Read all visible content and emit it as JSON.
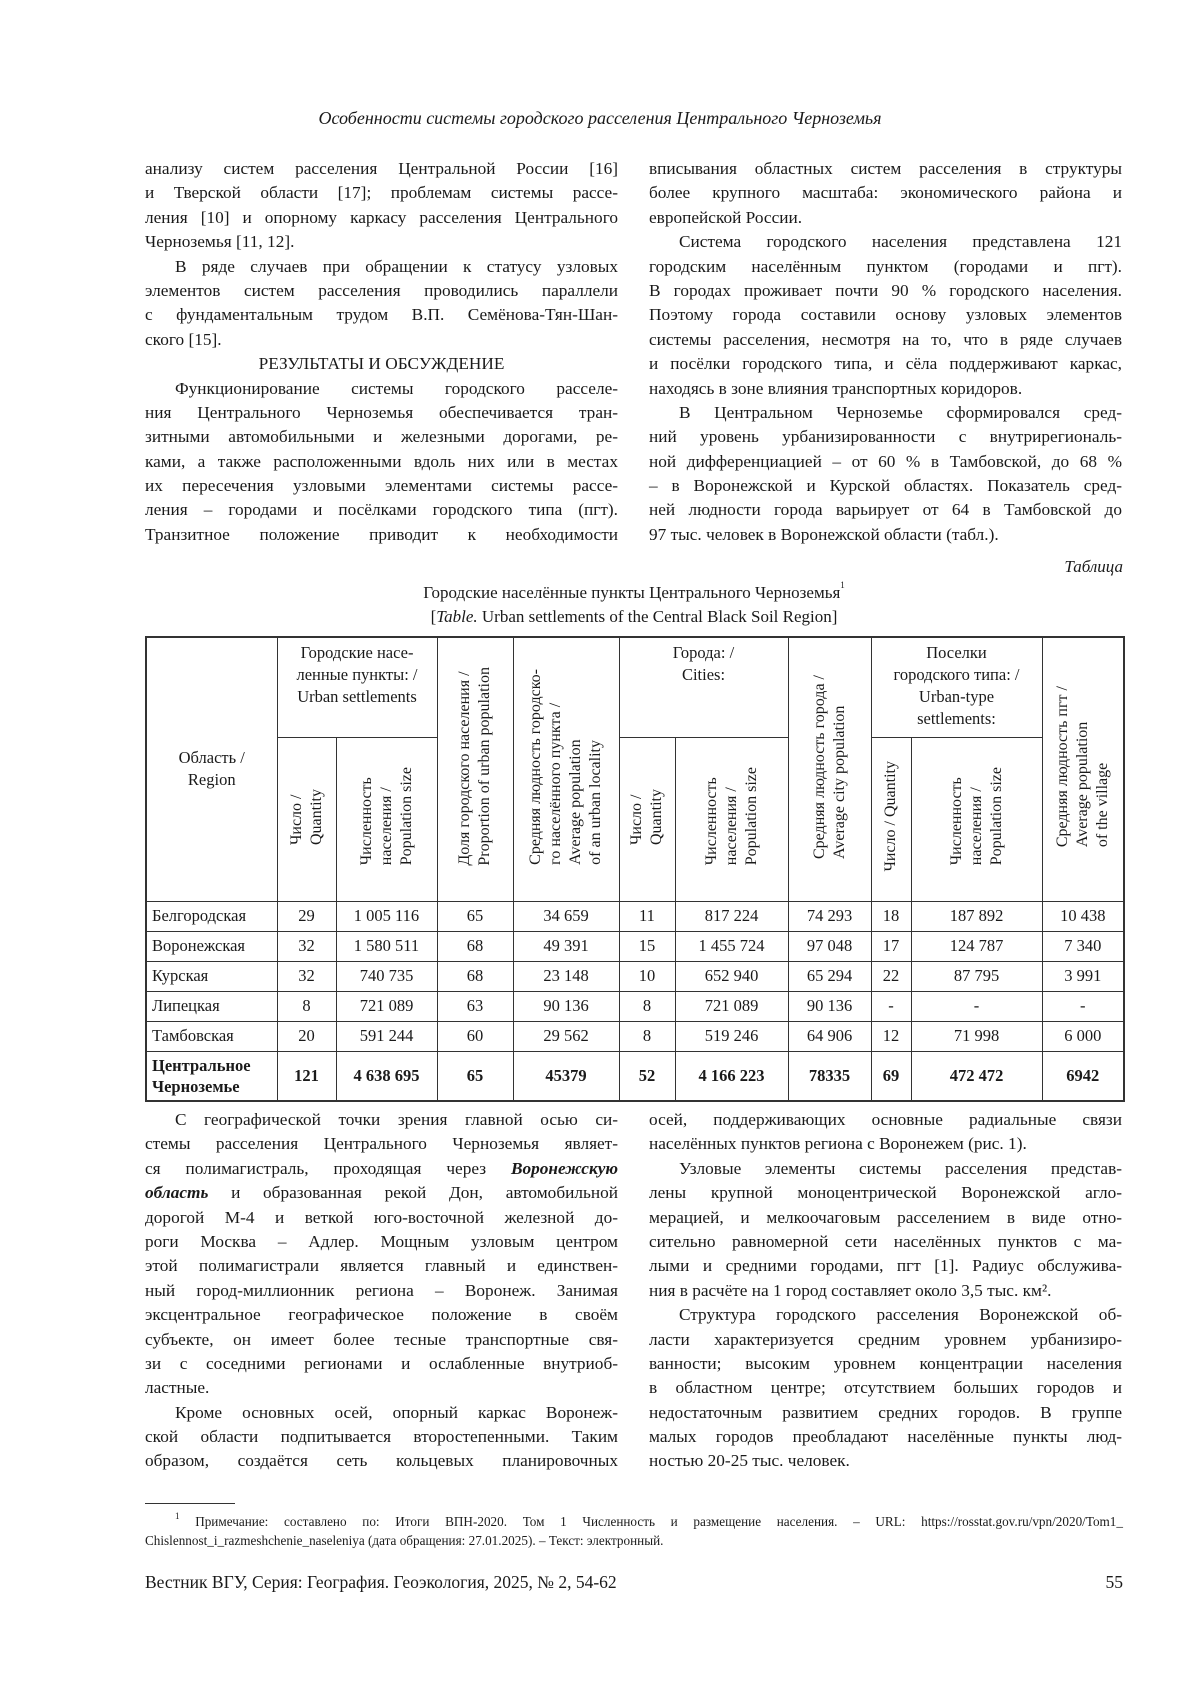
{
  "running_head": "Особенности системы городского расселения Центрального Черноземья",
  "columns_top": {
    "left": [
      {
        "type": "p",
        "indent": false,
        "lines": [
          "анализу систем расселения Центральной России [16]",
          "и Тверской области [17]; проблемам системы рассе-",
          "ления [10] и опорному каркасу расселения Центрального",
          "Черноземья [11, 12]."
        ]
      },
      {
        "type": "p",
        "indent": true,
        "lines": [
          "В ряде случаев при обращении к статусу узловых",
          "элементов систем расселения проводились параллели",
          "с фундаментальным трудом В.П. Семёнова-Тян-Шан-",
          "ского [15]."
        ]
      },
      {
        "type": "h",
        "text": "РЕЗУЛЬТАТЫ И ОБСУЖДЕНИЕ"
      },
      {
        "type": "p",
        "indent": true,
        "cont": true,
        "lines": [
          "Функционирование системы городского расселе-",
          "ния Центрального Черноземья обеспечивается тран-",
          "зитными автомобильными и железными дорогами, ре-",
          "ками, а также расположенными вдоль них или в местах",
          "их пересечения узловыми элементами системы рассе-",
          "ления – городами и посёлками городского типа (пгт).",
          "Транзитное положение приводит к необходимости"
        ]
      }
    ],
    "right": [
      {
        "type": "p",
        "indent": false,
        "lines": [
          "вписывания областных систем расселения в структуры",
          "более крупного масштаба: экономического района и",
          "европейской России."
        ]
      },
      {
        "type": "p",
        "indent": true,
        "lines": [
          "Система городского населения представлена 121",
          "городским населённым пунктом (городами и пгт).",
          "В городах проживает почти 90 % городского населения.",
          "Поэтому города составили основу узловых элементов",
          "системы расселения, несмотря на то, что в ряде случаев",
          "и посёлки городского типа, и сёла поддерживают каркас,",
          "находясь в зоне влияния транспортных коридоров."
        ]
      },
      {
        "type": "p",
        "indent": true,
        "lines": [
          "В Центральном Черноземье сформировался сред-",
          "ний уровень урбанизированности с внутрирегиональ-",
          "ной дифференциацией – от 60 % в Тамбовской, до 68 %",
          "– в Воронежской и Курской областях. Показатель сред-",
          "ней людности города варьирует от 64 в Тамбовской до",
          "97 тыс. человек в Воронежской области (табл.)."
        ]
      }
    ]
  },
  "table": {
    "label": "Таблица",
    "caption_ru": "Городские населённые пункты Центрального Черноземья",
    "caption_ref": "1",
    "caption_en_prefix": "Table.",
    "caption_en": " Urban settlements of the Central Black Soil Region]",
    "header": {
      "region": [
        "Область /",
        "Region"
      ],
      "urban_group": [
        "Городские насе-",
        "ленные пункты: /",
        "Urban settlements"
      ],
      "urban_qty": [
        "Число /",
        "Quantity"
      ],
      "urban_pop": [
        "Численность",
        "населения /",
        "Population size"
      ],
      "share": [
        "Доля городского населения /",
        "Proportion of urban population"
      ],
      "avg_locality": [
        "Средняя людность городско-",
        "го населённого пункта /",
        "Average population",
        "of an urban locality"
      ],
      "cities_group": [
        "Города: /",
        "Cities:"
      ],
      "cities_qty": [
        "Число /",
        "Quantity"
      ],
      "cities_pop": [
        "Численность",
        "населения /",
        "Population size"
      ],
      "avg_city": [
        "Средняя людность города /",
        "Average city population"
      ],
      "uts_group": [
        "Поселки",
        "городского типа: /",
        "Urban-type",
        "settlements:"
      ],
      "uts_qty": [
        "Число / Quantity"
      ],
      "uts_pop": [
        "Численность",
        "населения /",
        "Population size"
      ],
      "avg_village": [
        "Средняя людность пгт /",
        "Average population",
        "of the village"
      ]
    },
    "rows": [
      [
        "Белгородская",
        "29",
        "1 005 116",
        "65",
        "34 659",
        "11",
        "817 224",
        "74 293",
        "18",
        "187 892",
        "10 438"
      ],
      [
        "Воронежская",
        "32",
        "1 580 511",
        "68",
        "49 391",
        "15",
        "1 455 724",
        "97 048",
        "17",
        "124 787",
        "7 340"
      ],
      [
        "Курская",
        "32",
        "740 735",
        "68",
        "23 148",
        "10",
        "652 940",
        "65 294",
        "22",
        "87 795",
        "3 991"
      ],
      [
        "Липецкая",
        "8",
        "721 089",
        "63",
        "90 136",
        "8",
        "721 089",
        "90 136",
        "-",
        "-",
        "-"
      ],
      [
        "Тамбовская",
        "20",
        "591 244",
        "60",
        "29 562",
        "8",
        "519 246",
        "64 906",
        "12",
        "71 998",
        "6 000"
      ]
    ],
    "total": [
      "Центральное Черноземье",
      "121",
      "4 638 695",
      "65",
      "45379",
      "52",
      "4 166 223",
      "78335",
      "69",
      "472 472",
      "6942"
    ]
  },
  "columns_bottom": {
    "left": [
      {
        "type": "p",
        "indent": true,
        "lines": [
          "С географической точки зрения главной осью си-",
          "стемы расселения Центрального Черноземья являет-",
          [
            {
              "t": "ся полимагистраль, проходящая через "
            },
            {
              "t": "Воронежскую",
              "bi": true
            }
          ],
          [
            {
              "t": "область",
              "bi": true
            },
            {
              "t": " и образованная рекой Дон, автомобильной"
            }
          ],
          "дорогой М-4 и веткой юго-восточной железной до-",
          "роги Москва – Адлер. Мощным узловым центром",
          "этой полимагистрали является главный и единствен-",
          "ный город-миллионник региона – Воронеж. Занимая",
          "эксцентральное географическое положение в своём",
          "субъекте, он имеет более тесные транспортные свя-",
          "зи с соседними регионами и ослабленные внутриоб-",
          "ластные."
        ]
      },
      {
        "type": "p",
        "indent": true,
        "cont": true,
        "lines": [
          "Кроме основных осей, опорный каркас Воронеж-",
          "ской области подпитывается второстепенными. Таким",
          "образом, создаётся сеть кольцевых планировочных"
        ]
      }
    ],
    "right": [
      {
        "type": "p",
        "indent": false,
        "lines": [
          "осей, поддерживающих основные радиальные связи",
          "населённых пунктов региона с Воронежем (рис. 1)."
        ]
      },
      {
        "type": "p",
        "indent": true,
        "lines": [
          "Узловые элементы системы расселения представ-",
          "лены крупной моноцентрической Воронежской агло-",
          "мерацией, и мелкоочаговым расселением в виде отно-",
          "сительно равномерной сети населённых пунктов с ма-",
          "лыми и средними городами, пгт [1]. Радиус обслужива-",
          "ния в расчёте на 1 город составляет около 3,5 тыс. км²."
        ]
      },
      {
        "type": "p",
        "indent": true,
        "lines": [
          "Структура городского расселения Воронежской об-",
          "ласти характеризуется средним уровнем урбанизиро-",
          "ванности; высоким уровнем концентрации населения",
          "в областном центре; отсутствием больших городов и",
          "недостаточным развитием средних городов. В группе",
          "малых городов преобладают населённые пункты люд-",
          "ностью 20-25 тыс. человек."
        ]
      }
    ]
  },
  "footnote": {
    "mark": "1",
    "lines": [
      "Примечание: составлено по: Итоги ВПН-2020. Том 1 Численность и размещение населения. – URL: https://rosstat.gov.ru/vpn/2020/Tom1_",
      "Chislennost_i_razmeshchenie_naseleniya (дата обращения: 27.01.2025). – Текст: электронный."
    ]
  },
  "footer": {
    "journal": "Вестник ВГУ, Серия: География. Геоэкология, 2025, № 2, 54-62",
    "page": "55"
  }
}
